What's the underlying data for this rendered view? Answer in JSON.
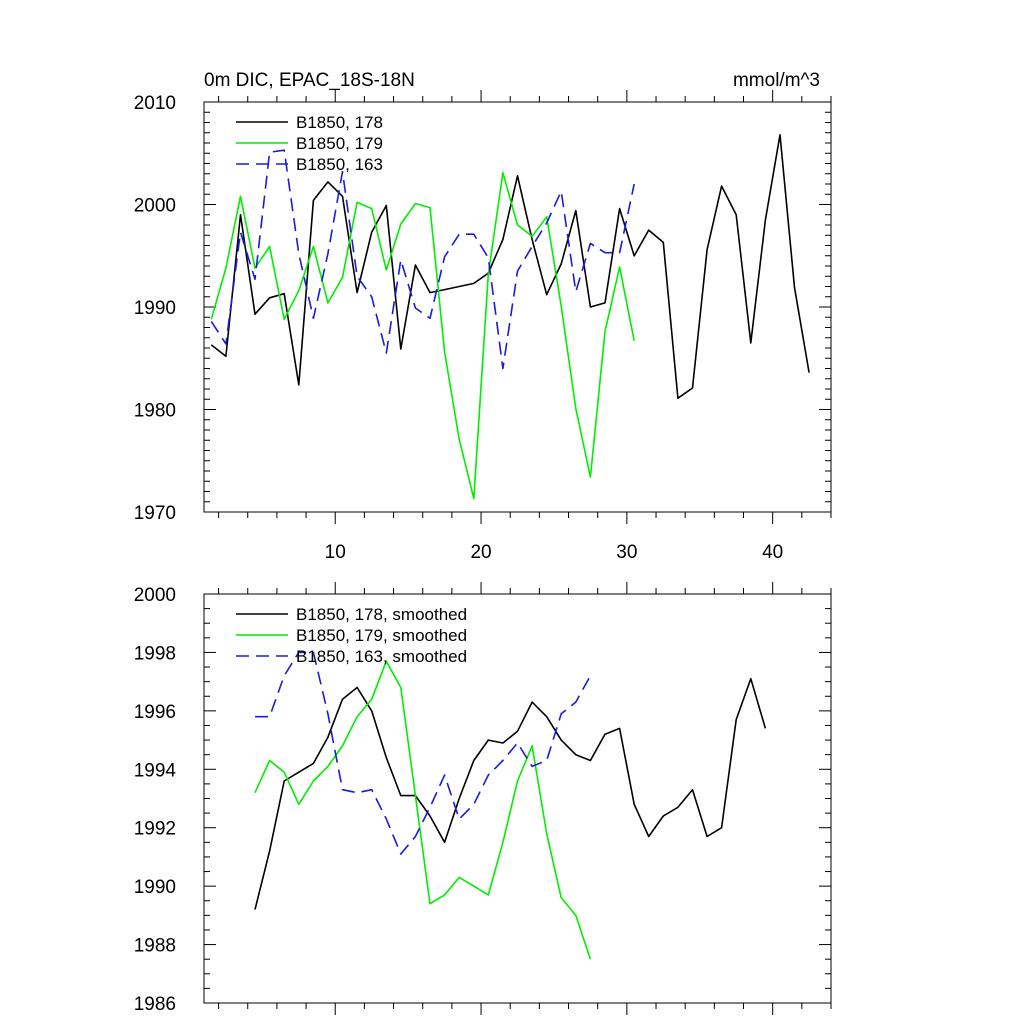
{
  "chart_data": [
    {
      "type": "line",
      "title": "0m DIC, EPAC_18S-18N",
      "title_right": "mmol/m^3",
      "xlabel": "",
      "ylabel": "",
      "xlim": [
        1,
        44
      ],
      "ylim": [
        1970,
        2010
      ],
      "x_major_ticks": [
        10,
        20,
        30,
        40
      ],
      "x_tick_labels": [
        "10",
        "20",
        "30",
        "40"
      ],
      "y_major_ticks": [
        1970,
        1980,
        1990,
        2000,
        2010
      ],
      "y_tick_labels": [
        "1970",
        "1980",
        "1990",
        "2000",
        "2010"
      ],
      "legend_position": "top-left",
      "series": [
        {
          "name": "B1850, 178",
          "color": "#000000",
          "dash": "solid",
          "x": [
            1.5,
            2.5,
            3.5,
            4.5,
            5.5,
            6.5,
            7.5,
            8.5,
            9.5,
            10.5,
            11.5,
            12.5,
            13.5,
            14.5,
            15.5,
            16.5,
            17.5,
            18.5,
            19.5,
            20.5,
            21.5,
            22.5,
            23.5,
            24.5,
            25.5,
            26.5,
            27.5,
            28.5,
            29.5,
            30.5,
            31.5,
            32.5,
            33.5,
            34.5,
            35.5,
            36.5,
            37.5,
            38.5,
            39.5,
            40.5,
            41.5,
            42.5
          ],
          "values": [
            1986.3,
            1985.2,
            1999.0,
            1989.3,
            1990.9,
            1991.3,
            1982.4,
            2000.4,
            2002.2,
            2000.8,
            1991.4,
            1997.3,
            1999.9,
            1985.9,
            1994.1,
            1991.4,
            1991.7,
            1992.0,
            1992.3,
            1993.3,
            1996.6,
            2002.8,
            1996.6,
            1991.2,
            1994.2,
            1999.4,
            1990.0,
            1990.4,
            1999.6,
            1995.0,
            1997.5,
            1996.3,
            1981.1,
            1982.1,
            1995.6,
            2001.8,
            1999.0,
            1986.5,
            1998.5,
            2006.8,
            1991.9,
            1983.6
          ]
        },
        {
          "name": "B1850, 179",
          "color": "#00ee00",
          "dash": "solid",
          "x": [
            1.5,
            2.5,
            3.5,
            4.5,
            5.5,
            6.5,
            7.5,
            8.5,
            9.5,
            10.5,
            11.5,
            12.5,
            13.5,
            14.5,
            15.5,
            16.5,
            17.5,
            18.5,
            19.5,
            20.5,
            21.5,
            22.5,
            23.5,
            24.5,
            25.5,
            26.5,
            27.5,
            28.5,
            29.5,
            30.5
          ],
          "values": [
            1988.8,
            1993.8,
            2000.8,
            1993.8,
            1995.9,
            1988.8,
            1991.6,
            1995.9,
            1990.4,
            1992.9,
            2000.2,
            1999.6,
            1993.6,
            1998.1,
            2000.1,
            1999.7,
            1985.6,
            1977.1,
            1971.3,
            1993.2,
            2003.1,
            1998.0,
            1996.9,
            1998.8,
            1990.1,
            1980.1,
            1973.4,
            1987.6,
            1993.9,
            1986.7
          ]
        },
        {
          "name": "B1850, 163",
          "color": "#1c1cd6",
          "dash": "dashed",
          "x": [
            1.5,
            2.5,
            3.5,
            4.5,
            5.5,
            6.5,
            7.5,
            8.5,
            9.5,
            10.5,
            11.5,
            12.5,
            13.5,
            14.5,
            15.5,
            16.5,
            17.5,
            18.5,
            19.5,
            20.5,
            21.5,
            22.5,
            23.5,
            24.5,
            25.5,
            26.5,
            27.5,
            28.5,
            29.5,
            30.5
          ],
          "values": [
            1988.6,
            1986.4,
            1997.3,
            1992.7,
            2005.1,
            2005.3,
            1995.2,
            1988.9,
            1995.2,
            2003.2,
            1993.0,
            1991.0,
            1985.5,
            1994.6,
            1989.9,
            1988.9,
            1994.9,
            1997.1,
            1997.1,
            1994.8,
            1984.0,
            1993.5,
            1995.9,
            1998.2,
            2001.3,
            1991.5,
            1996.2,
            1995.3,
            1995.3,
            2002.0
          ]
        }
      ]
    },
    {
      "type": "line",
      "title": "",
      "xlabel": "",
      "ylabel": "",
      "xlim": [
        1,
        44
      ],
      "ylim": [
        1986,
        2000
      ],
      "x_major_ticks": [
        10,
        20,
        30,
        40
      ],
      "x_tick_labels": [],
      "y_major_ticks": [
        1986,
        1988,
        1990,
        1992,
        1994,
        1996,
        1998,
        2000
      ],
      "y_tick_labels": [
        "1986",
        "1988",
        "1990",
        "1992",
        "1994",
        "1996",
        "1998",
        "2000"
      ],
      "legend_position": "top-left",
      "series": [
        {
          "name": "B1850, 178, smoothed",
          "color": "#000000",
          "dash": "solid",
          "x": [
            4.5,
            5.5,
            6.5,
            7.5,
            8.5,
            9.5,
            10.5,
            11.5,
            12.5,
            13.5,
            14.5,
            15.5,
            16.5,
            17.5,
            18.5,
            19.5,
            20.5,
            21.5,
            22.5,
            23.5,
            24.5,
            25.5,
            26.5,
            27.5,
            28.5,
            29.5,
            30.5,
            31.5,
            32.5,
            33.5,
            34.5,
            35.5,
            36.5,
            37.5,
            38.5,
            39.5
          ],
          "values": [
            1989.2,
            1991.2,
            1993.6,
            1993.9,
            1994.2,
            1995.1,
            1996.4,
            1996.8,
            1996.0,
            1994.4,
            1993.1,
            1993.1,
            1992.4,
            1991.5,
            1993.0,
            1994.3,
            1995.0,
            1994.9,
            1995.3,
            1996.3,
            1995.8,
            1995.0,
            1994.5,
            1994.3,
            1995.2,
            1995.4,
            1992.8,
            1991.7,
            1992.4,
            1992.7,
            1993.3,
            1991.7,
            1992.0,
            1995.7,
            1997.1,
            1995.4
          ]
        },
        {
          "name": "B1850, 179, smoothed",
          "color": "#00ee00",
          "dash": "solid",
          "x": [
            4.5,
            5.5,
            6.5,
            7.5,
            8.5,
            9.5,
            10.5,
            11.5,
            12.5,
            13.5,
            14.5,
            15.5,
            16.5,
            17.5,
            18.5,
            19.5,
            20.5,
            21.5,
            22.5,
            23.5,
            24.5,
            25.5,
            26.5,
            27.5
          ],
          "values": [
            1993.2,
            1994.3,
            1993.9,
            1992.8,
            1993.6,
            1994.1,
            1994.8,
            1995.8,
            1996.4,
            1997.7,
            1996.8,
            1993.1,
            1989.4,
            1989.7,
            1990.3,
            1990.0,
            1989.7,
            1991.5,
            1993.6,
            1994.8,
            1991.8,
            1989.6,
            1989.0,
            1987.5
          ]
        },
        {
          "name": "B1850, 163, smoothed",
          "color": "#1c1cd6",
          "dash": "dashed",
          "x": [
            4.5,
            5.5,
            6.5,
            7.5,
            8.5,
            9.5,
            10.5,
            11.5,
            12.5,
            13.5,
            14.5,
            15.5,
            16.5,
            17.5,
            18.5,
            19.5,
            20.5,
            21.5,
            22.5,
            23.5,
            24.5,
            25.5,
            26.5,
            27.5
          ],
          "values": [
            1995.8,
            1995.8,
            1997.2,
            1998.0,
            1998.0,
            1995.9,
            1993.3,
            1993.2,
            1993.3,
            1992.3,
            1991.1,
            1991.7,
            1992.7,
            1993.8,
            1992.3,
            1992.8,
            1993.8,
            1994.3,
            1994.9,
            1994.1,
            1994.3,
            1995.9,
            1996.3,
            1997.2
          ]
        }
      ]
    }
  ]
}
